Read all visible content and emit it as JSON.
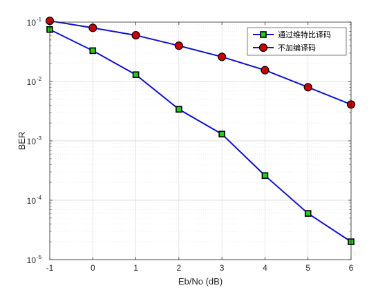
{
  "chart_data": {
    "type": "line",
    "title": "",
    "xlabel": "Eb/No (dB)",
    "ylabel": "BER",
    "x": [
      -1,
      0,
      1,
      2,
      3,
      4,
      5,
      6
    ],
    "xlim": [
      -1,
      6
    ],
    "ylim": [
      1e-05,
      0.1
    ],
    "yscale": "log",
    "xticks": [
      -1,
      0,
      1,
      2,
      3,
      4,
      5,
      6
    ],
    "yticks": [
      {
        "value": 0.1,
        "base": "10",
        "exp": "-1"
      },
      {
        "value": 0.01,
        "base": "10",
        "exp": "-2"
      },
      {
        "value": 0.001,
        "base": "10",
        "exp": "-3"
      },
      {
        "value": 0.0001,
        "base": "10",
        "exp": "-4"
      },
      {
        "value": 1e-05,
        "base": "10",
        "exp": "-5"
      }
    ],
    "grid": true,
    "minor_grid": true,
    "legend_position": "top-right",
    "series": [
      {
        "name": "通过维特比译码",
        "values": [
          0.075,
          0.033,
          0.013,
          0.0034,
          0.0013,
          0.00026,
          6e-05,
          2e-05
        ],
        "line_color": "#1010d0",
        "marker": "square",
        "marker_fill": "#22cc22",
        "marker_edge": "#000000"
      },
      {
        "name": "不加编译码",
        "values": [
          0.105,
          0.08,
          0.06,
          0.04,
          0.026,
          0.0155,
          0.008,
          0.0041
        ],
        "line_color": "#1010d0",
        "marker": "circle",
        "marker_fill": "#cc0000",
        "marker_edge": "#000000"
      }
    ]
  }
}
